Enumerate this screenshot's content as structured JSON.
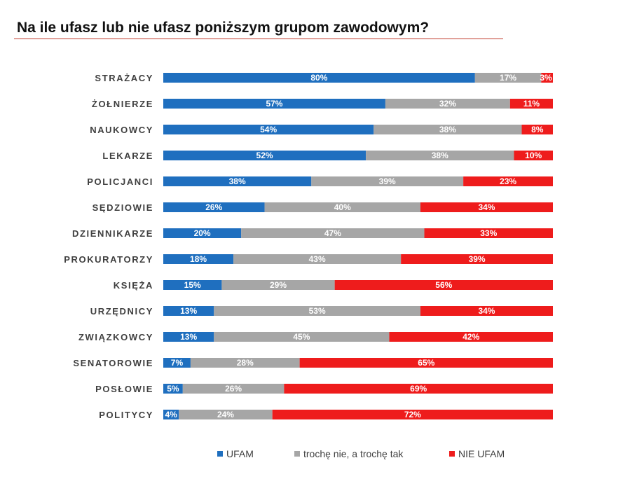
{
  "title": "Na ile ufasz lub nie ufasz poniższym grupom zawodowym?",
  "chart_data": {
    "type": "bar",
    "stacked": true,
    "orientation": "horizontal",
    "title": "Na ile ufasz lub nie ufasz poniższym grupom zawodowym?",
    "categories": [
      "STRAŻACY",
      "ŻOŁNIERZE",
      "NAUKOWCY",
      "LEKARZE",
      "POLICJANCI",
      "SĘDZIOWIE",
      "DZIENNIKARZE",
      "PROKURATORZY",
      "KSIĘŻA",
      "URZĘDNICY",
      "ZWIĄZKOWCY",
      "SENATOROWIE",
      "POSŁOWIE",
      "POLITYCY"
    ],
    "series": [
      {
        "name": "UFAM",
        "color": "#1f6fbf",
        "values": [
          80,
          57,
          54,
          52,
          38,
          26,
          20,
          18,
          15,
          13,
          13,
          7,
          5,
          4
        ]
      },
      {
        "name": "trochę nie, a trochę tak",
        "color": "#a6a6a6",
        "values": [
          17,
          32,
          38,
          38,
          39,
          40,
          47,
          43,
          29,
          53,
          45,
          28,
          26,
          24
        ]
      },
      {
        "name": "NIE UFAM",
        "color": "#ee1c1c",
        "values": [
          3,
          11,
          8,
          10,
          23,
          34,
          33,
          39,
          56,
          34,
          42,
          65,
          69,
          72
        ]
      }
    ],
    "value_suffix": "%",
    "legend_position": "bottom",
    "grid": false
  }
}
